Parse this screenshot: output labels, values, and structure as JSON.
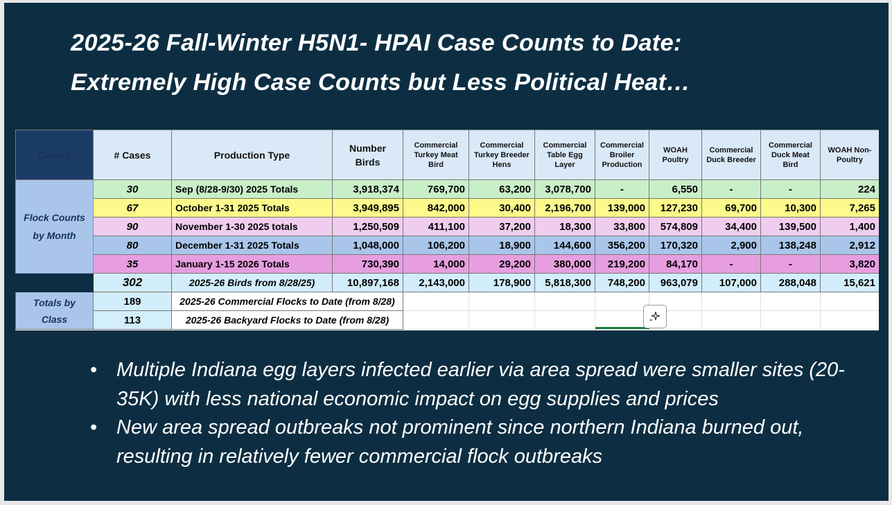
{
  "title": {
    "line1": "2025-26 Fall-Winter H5N1- HPAI Case Counts to Date:",
    "line2": "Extremely High Case Counts but Less Political Heat…"
  },
  "table": {
    "headers": [
      "County",
      "# Cases",
      "Production Type",
      "Number Birds",
      "Commercial Turkey Meat Bird",
      "Commercial Turkey Breeder Hens",
      "Commercial Table Egg Layer",
      "Commercial Broiler Production",
      "WOAH Poultry",
      "Commercial Duck Breeder",
      "Commercial Duck Meat Bird",
      "WOAH Non-Poultry"
    ],
    "side_monthly": "Flock Counts by Month",
    "side_class": "Totals by Class",
    "rows": [
      {
        "cases": "30",
        "label": "Sep (8/28-9/30) 2025 Totals",
        "values": [
          "3,918,374",
          "769,700",
          "63,200",
          "3,078,700",
          "-",
          "6,550",
          "-",
          "-",
          "224"
        ]
      },
      {
        "cases": "67",
        "label": "October 1-31 2025 Totals",
        "values": [
          "3,949,895",
          "842,000",
          "30,400",
          "2,196,700",
          "139,000",
          "127,230",
          "69,700",
          "10,300",
          "7,265"
        ]
      },
      {
        "cases": "90",
        "label": "November 1-30 2025 totals",
        "values": [
          "1,250,509",
          "411,100",
          "37,200",
          "18,300",
          "33,800",
          "574,809",
          "34,400",
          "139,500",
          "1,400"
        ]
      },
      {
        "cases": "80",
        "label": "December 1-31 2025 Totals",
        "values": [
          "1,048,000",
          "106,200",
          "18,900",
          "144,600",
          "356,200",
          "170,320",
          "2,900",
          "138,248",
          "2,912"
        ]
      },
      {
        "cases": "35",
        "label": "January 1-15 2026 Totals",
        "values": [
          "730,390",
          "14,000",
          "29,200",
          "380,000",
          "219,200",
          "84,170",
          "-",
          "-",
          "3,820"
        ]
      }
    ],
    "total": {
      "cases": "302",
      "label": "2025-26 Birds from 8/28/25)",
      "values": [
        "10,897,168",
        "2,143,000",
        "178,900",
        "5,818,300",
        "748,200",
        "963,079",
        "107,000",
        "288,048",
        "15,621"
      ]
    },
    "class_rows": [
      {
        "cases": "189",
        "label": "2025-26 Commercial Flocks to Date (from 8/28)"
      },
      {
        "cases": "113",
        "label": "2025-26 Backyard Flocks to Date (from 8/28)"
      }
    ]
  },
  "bullets": [
    "Multiple Indiana egg layers infected earlier via area spread were smaller sites (20-35K) with less national economic impact on egg supplies and prices",
    "New area spread outbreaks not prominent since northern Indiana burned out, resulting in relatively fewer commercial flock outbreaks"
  ],
  "bullet_char": "•",
  "icons": {
    "copilot": "sparkle-icon"
  }
}
